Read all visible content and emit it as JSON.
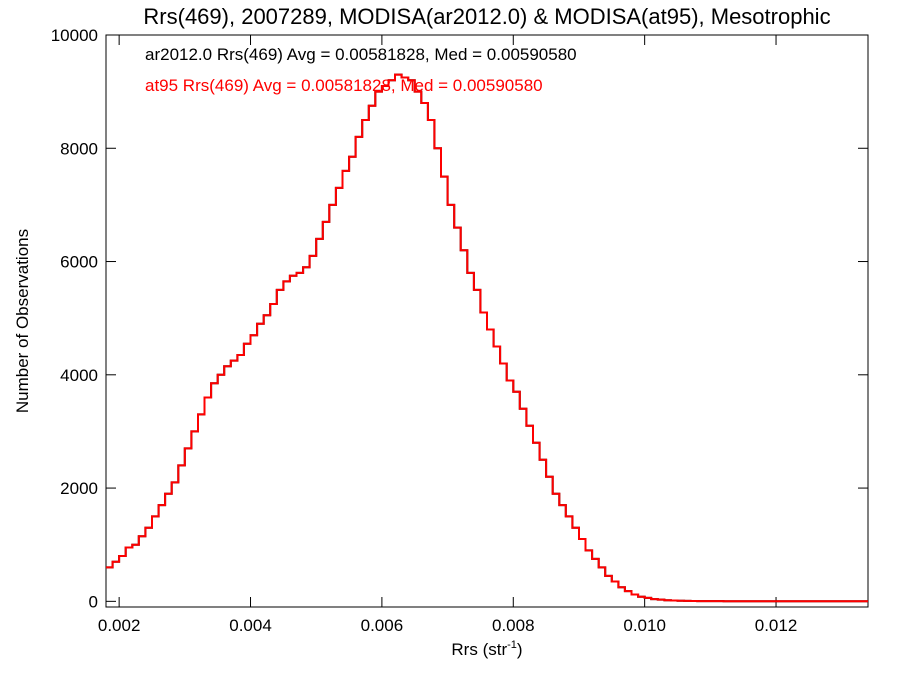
{
  "chart_data": {
    "type": "line",
    "title": "Rrs(469), 2007289, MODISA(ar2012.0) & MODISA(at95), Mesotrophic",
    "xlabel_main": "Rrs (str",
    "xlabel_sup": "-1",
    "xlabel_tail": ")",
    "ylabel": "Number of Observations",
    "xlim": [
      0.0018,
      0.0134
    ],
    "ylim": [
      -100,
      10000
    ],
    "x_ticks": [
      0.002,
      0.004,
      0.006,
      0.008,
      0.01,
      0.012
    ],
    "x_tick_labels": [
      "0.002",
      "0.004",
      "0.006",
      "0.008",
      "0.010",
      "0.012"
    ],
    "y_ticks": [
      0,
      2000,
      4000,
      6000,
      8000,
      10000
    ],
    "y_tick_labels": [
      "0",
      "2000",
      "4000",
      "6000",
      "8000",
      "10000"
    ],
    "annotations": [
      {
        "text": "ar2012.0 Rrs(469) Avg = 0.00581828, Med = 0.00590580",
        "color": "#000000"
      },
      {
        "text": "at95 Rrs(469) Avg = 0.00581828, Med = 0.00590580",
        "color": "#ff0000"
      }
    ],
    "series": [
      {
        "name": "ar2012.0",
        "color": "#000000",
        "x": [
          0.0018,
          0.0019,
          0.002,
          0.0021,
          0.0022,
          0.0023,
          0.0024,
          0.0025,
          0.0026,
          0.0027,
          0.0028,
          0.0029,
          0.003,
          0.0031,
          0.0032,
          0.0033,
          0.0034,
          0.0035,
          0.0036,
          0.0037,
          0.0038,
          0.0039,
          0.004,
          0.0041,
          0.0042,
          0.0043,
          0.0044,
          0.0045,
          0.0046,
          0.0047,
          0.0048,
          0.0049,
          0.005,
          0.0051,
          0.0052,
          0.0053,
          0.0054,
          0.0055,
          0.0056,
          0.0057,
          0.0058,
          0.0059,
          0.006,
          0.0061,
          0.0062,
          0.0063,
          0.0064,
          0.0065,
          0.0066,
          0.0067,
          0.0068,
          0.0069,
          0.007,
          0.0071,
          0.0072,
          0.0073,
          0.0074,
          0.0075,
          0.0076,
          0.0077,
          0.0078,
          0.0079,
          0.008,
          0.0081,
          0.0082,
          0.0083,
          0.0084,
          0.0085,
          0.0086,
          0.0087,
          0.0088,
          0.0089,
          0.009,
          0.0091,
          0.0092,
          0.0093,
          0.0094,
          0.0095,
          0.0096,
          0.0097,
          0.0098,
          0.0099,
          0.01,
          0.0101,
          0.0102,
          0.0103,
          0.0104,
          0.0105,
          0.0106,
          0.0107,
          0.0108,
          0.011,
          0.0112,
          0.0114,
          0.0116,
          0.0118,
          0.012,
          0.0122,
          0.0124,
          0.0126,
          0.0128,
          0.013,
          0.0132,
          0.0134
        ],
        "y": [
          600,
          700,
          800,
          950,
          1000,
          1150,
          1300,
          1500,
          1700,
          1900,
          2100,
          2400,
          2700,
          3000,
          3300,
          3600,
          3850,
          4000,
          4150,
          4250,
          4350,
          4550,
          4700,
          4900,
          5050,
          5250,
          5500,
          5650,
          5750,
          5800,
          5900,
          6100,
          6400,
          6700,
          7000,
          7300,
          7600,
          7850,
          8200,
          8500,
          8750,
          9000,
          9100,
          9200,
          9300,
          9250,
          9200,
          9000,
          8800,
          8500,
          8000,
          7500,
          7000,
          6600,
          6200,
          5800,
          5500,
          5100,
          4800,
          4500,
          4200,
          3900,
          3700,
          3400,
          3100,
          2800,
          2500,
          2200,
          1900,
          1700,
          1500,
          1300,
          1100,
          900,
          750,
          600,
          450,
          350,
          250,
          180,
          120,
          80,
          60,
          40,
          30,
          20,
          15,
          10,
          8,
          6,
          5,
          4,
          3,
          2,
          2,
          1,
          1,
          1,
          0,
          0,
          0,
          0,
          0,
          0
        ]
      },
      {
        "name": "at95",
        "color": "#ff0000",
        "x": [
          0.0018,
          0.0019,
          0.002,
          0.0021,
          0.0022,
          0.0023,
          0.0024,
          0.0025,
          0.0026,
          0.0027,
          0.0028,
          0.0029,
          0.003,
          0.0031,
          0.0032,
          0.0033,
          0.0034,
          0.0035,
          0.0036,
          0.0037,
          0.0038,
          0.0039,
          0.004,
          0.0041,
          0.0042,
          0.0043,
          0.0044,
          0.0045,
          0.0046,
          0.0047,
          0.0048,
          0.0049,
          0.005,
          0.0051,
          0.0052,
          0.0053,
          0.0054,
          0.0055,
          0.0056,
          0.0057,
          0.0058,
          0.0059,
          0.006,
          0.0061,
          0.0062,
          0.0063,
          0.0064,
          0.0065,
          0.0066,
          0.0067,
          0.0068,
          0.0069,
          0.007,
          0.0071,
          0.0072,
          0.0073,
          0.0074,
          0.0075,
          0.0076,
          0.0077,
          0.0078,
          0.0079,
          0.008,
          0.0081,
          0.0082,
          0.0083,
          0.0084,
          0.0085,
          0.0086,
          0.0087,
          0.0088,
          0.0089,
          0.009,
          0.0091,
          0.0092,
          0.0093,
          0.0094,
          0.0095,
          0.0096,
          0.0097,
          0.0098,
          0.0099,
          0.01,
          0.0101,
          0.0102,
          0.0103,
          0.0104,
          0.0105,
          0.0106,
          0.0107,
          0.0108,
          0.011,
          0.0112,
          0.0114,
          0.0116,
          0.0118,
          0.012,
          0.0122,
          0.0124,
          0.0126,
          0.0128,
          0.013,
          0.0132,
          0.0134
        ],
        "y": [
          600,
          700,
          800,
          950,
          1000,
          1150,
          1300,
          1500,
          1700,
          1900,
          2100,
          2400,
          2700,
          3000,
          3300,
          3600,
          3850,
          4000,
          4150,
          4250,
          4350,
          4550,
          4700,
          4900,
          5050,
          5250,
          5500,
          5650,
          5750,
          5800,
          5900,
          6100,
          6400,
          6700,
          7000,
          7300,
          7600,
          7850,
          8200,
          8500,
          8750,
          9000,
          9100,
          9200,
          9300,
          9250,
          9200,
          9000,
          8800,
          8500,
          8000,
          7500,
          7000,
          6600,
          6200,
          5800,
          5500,
          5100,
          4800,
          4500,
          4200,
          3900,
          3700,
          3400,
          3100,
          2800,
          2500,
          2200,
          1900,
          1700,
          1500,
          1300,
          1100,
          900,
          750,
          600,
          450,
          350,
          250,
          180,
          120,
          80,
          60,
          40,
          30,
          20,
          15,
          10,
          8,
          6,
          5,
          4,
          3,
          2,
          2,
          1,
          1,
          1,
          0,
          0,
          0,
          0,
          0,
          0
        ]
      }
    ]
  }
}
